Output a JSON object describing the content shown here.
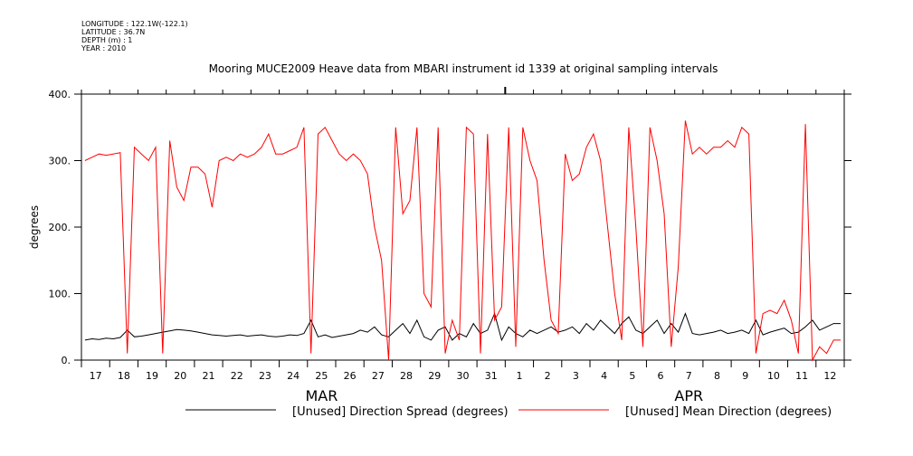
{
  "meta": {
    "longitude": "LONGITUDE : 122.1W(-122.1)",
    "latitude": "LATITUDE : 36.7N",
    "depth": "DEPTH (m) : 1",
    "year": "YEAR : 2010"
  },
  "chart_data": {
    "type": "line",
    "title": "Mooring MUCE2009 Heave data from MBARI instrument id 1339 at original sampling intervals",
    "xlabel": "",
    "ylabel": "degrees",
    "ylim": [
      0,
      400
    ],
    "yticks": [
      0,
      100,
      200,
      300,
      400
    ],
    "ytick_labels": [
      "0.",
      "100.",
      "200.",
      "300.",
      "400."
    ],
    "x_range_days": [
      0,
      27
    ],
    "x_start": "2010-03-17",
    "x_tick_labels": [
      "17",
      "18",
      "19",
      "20",
      "21",
      "22",
      "23",
      "24",
      "25",
      "26",
      "27",
      "28",
      "29",
      "30",
      "31",
      "1",
      "2",
      "3",
      "4",
      "5",
      "6",
      "7",
      "8",
      "9",
      "10",
      "11",
      "12"
    ],
    "month_labels": [
      {
        "label": "MAR",
        "day_index": 8
      },
      {
        "label": "APR",
        "day_index": 21
      }
    ],
    "grid": false,
    "legend_position": "bottom",
    "x_step_days": 0.25,
    "series": [
      {
        "name": "[Unused] Direction Spread (degrees)",
        "color": "#000000",
        "values": [
          30,
          32,
          31,
          33,
          32,
          34,
          45,
          35,
          36,
          38,
          40,
          42,
          44,
          46,
          45,
          44,
          42,
          40,
          38,
          37,
          36,
          37,
          38,
          36,
          37,
          38,
          36,
          35,
          36,
          38,
          37,
          40,
          60,
          35,
          38,
          34,
          36,
          38,
          40,
          45,
          42,
          50,
          38,
          35,
          45,
          55,
          40,
          60,
          35,
          30,
          45,
          50,
          30,
          40,
          35,
          55,
          40,
          45,
          70,
          30,
          50,
          40,
          35,
          45,
          40,
          45,
          50,
          42,
          45,
          50,
          40,
          55,
          45,
          60,
          50,
          40,
          55,
          65,
          45,
          40,
          50,
          60,
          40,
          55,
          42,
          70,
          40,
          38,
          40,
          42,
          45,
          40,
          42,
          45,
          40,
          60,
          38,
          42,
          45,
          48,
          40,
          42,
          50,
          60,
          45,
          50,
          55,
          55
        ]
      },
      {
        "name": "[Unused] Mean Direction (degrees)",
        "color": "#ff0000",
        "values": [
          300,
          305,
          310,
          308,
          310,
          312,
          10,
          320,
          310,
          300,
          320,
          10,
          330,
          260,
          240,
          290,
          290,
          280,
          230,
          300,
          305,
          300,
          310,
          305,
          310,
          320,
          340,
          310,
          310,
          315,
          320,
          350,
          10,
          340,
          350,
          330,
          310,
          300,
          310,
          300,
          280,
          200,
          150,
          0,
          350,
          220,
          240,
          350,
          100,
          80,
          350,
          10,
          60,
          30,
          350,
          340,
          10,
          340,
          60,
          80,
          350,
          20,
          350,
          300,
          270,
          150,
          60,
          40,
          310,
          270,
          280,
          320,
          340,
          300,
          200,
          100,
          30,
          350,
          200,
          20,
          350,
          300,
          220,
          20,
          140,
          360,
          310,
          320,
          310,
          320,
          320,
          330,
          320,
          350,
          340,
          10,
          70,
          75,
          70,
          90,
          60,
          10,
          355,
          0,
          20,
          10,
          30,
          30
        ]
      }
    ]
  }
}
